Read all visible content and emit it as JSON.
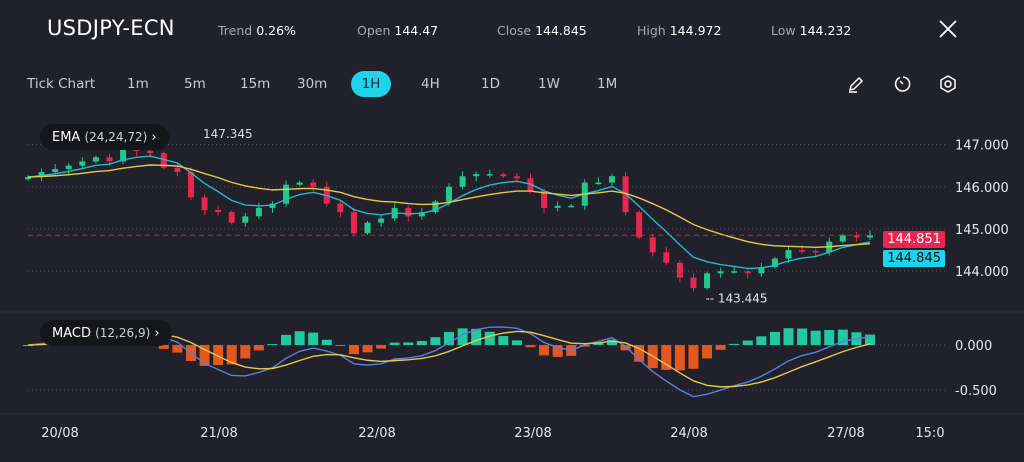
{
  "header": {
    "symbol": "USDJPY-ECN",
    "stats": [
      {
        "label": "Trend",
        "value": "0.26%"
      },
      {
        "label": "Open",
        "value": "144.47"
      },
      {
        "label": "Close",
        "value": "144.845"
      },
      {
        "label": "High",
        "value": "144.972"
      },
      {
        "label": "Low",
        "value": "144.232"
      }
    ],
    "close_icon": "close-icon"
  },
  "timeframes": {
    "items": [
      "Tick Chart",
      "1m",
      "5m",
      "15m",
      "30m",
      "1H",
      "4H",
      "1D",
      "1W",
      "1M"
    ],
    "selected": "1H"
  },
  "tools": [
    "pencil-icon",
    "timer-icon",
    "settings-hexagon-icon"
  ],
  "colors": {
    "background": "#21212b",
    "accent": "#1fd3ea",
    "bull": "#22c98a",
    "bear": "#e8264f",
    "ema_fast": "#25b8c8",
    "ema_slow": "#e3c94a",
    "macd_line": "#5b7fe0",
    "signal_line": "#e3c94a",
    "hist_pos": "#22c9a0",
    "hist_neg": "#e4571f"
  },
  "indicators": {
    "ema": {
      "name": "EMA",
      "params": "(24,24,72)",
      "top_value": "147.345"
    },
    "macd": {
      "name": "MACD",
      "params": "(12,26,9)"
    }
  },
  "chart_data": {
    "type": "candlestick",
    "price_axis": {
      "ticks": [
        "147.000",
        "146.000",
        "145.000",
        "144.000"
      ],
      "ylim": [
        143.2,
        147.7
      ]
    },
    "macd_axis": {
      "ticks": [
        "0.000",
        "-0.500"
      ],
      "ylim": [
        -0.72,
        0.3
      ]
    },
    "x_labels": [
      "20/08",
      "21/08",
      "22/08",
      "23/08",
      "24/08",
      "27/08",
      "15:0"
    ],
    "last_price": "144.851",
    "current_close": "144.845",
    "low_marker": "143.445",
    "closes": [
      146.23,
      146.35,
      146.42,
      146.5,
      146.6,
      146.7,
      146.6,
      146.9,
      146.85,
      146.8,
      146.45,
      146.35,
      145.75,
      145.45,
      145.4,
      145.15,
      145.3,
      145.5,
      145.6,
      146.05,
      146.1,
      146.0,
      145.6,
      145.4,
      144.9,
      145.15,
      145.25,
      145.5,
      145.3,
      145.4,
      145.65,
      146.0,
      146.25,
      146.3,
      146.3,
      146.25,
      146.2,
      145.9,
      145.5,
      145.55,
      145.55,
      146.1,
      146.1,
      146.25,
      145.4,
      144.8,
      144.45,
      144.2,
      143.85,
      143.6,
      143.95,
      144.0,
      144.0,
      143.95,
      144.1,
      144.3,
      144.5,
      144.48,
      144.45,
      144.7,
      144.85,
      144.8,
      144.85
    ]
  }
}
